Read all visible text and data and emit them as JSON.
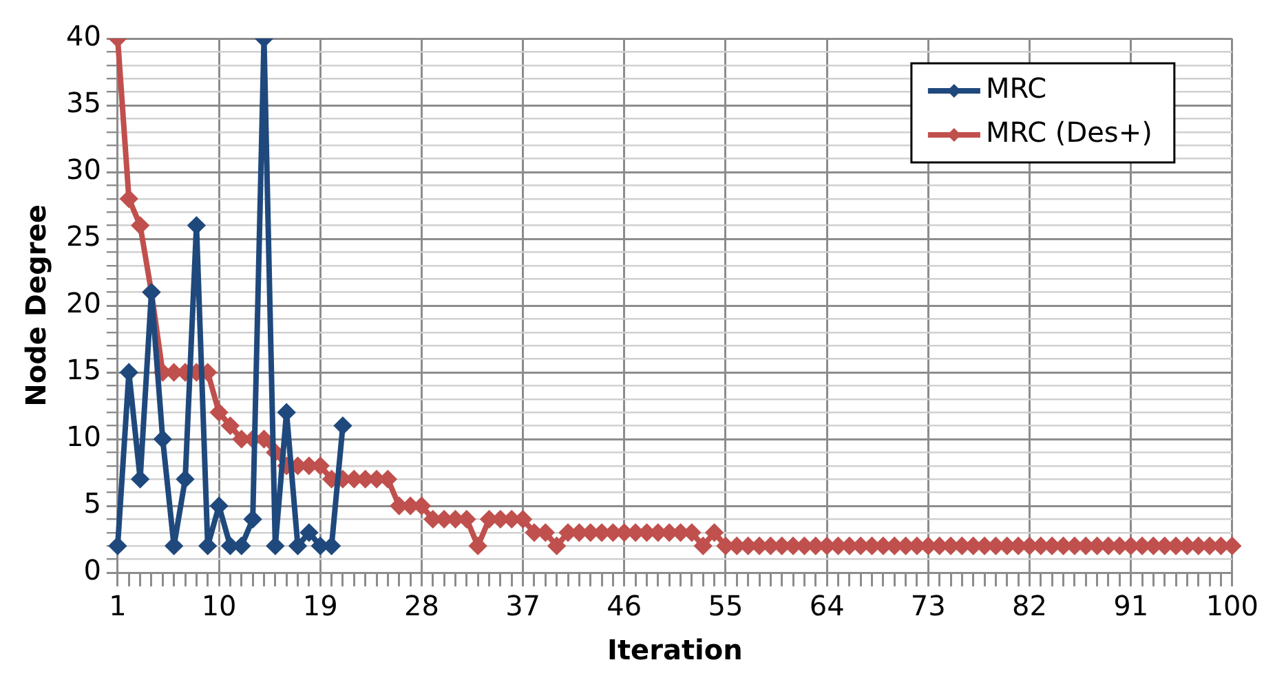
{
  "chart_data": {
    "type": "line",
    "xlabel": "Iteration",
    "ylabel": "Node Degree",
    "categories": [
      "1",
      null,
      null,
      null,
      null,
      null,
      null,
      null,
      null,
      "10",
      null,
      null,
      null,
      null,
      null,
      null,
      null,
      null,
      "19",
      null,
      null,
      null,
      null,
      null,
      null,
      null,
      null,
      "28",
      null,
      null,
      null,
      null,
      null,
      null,
      null,
      null,
      "37",
      null,
      null,
      null,
      null,
      null,
      null,
      null,
      null,
      "46",
      null,
      null,
      null,
      null,
      null,
      null,
      null,
      null,
      "55",
      null,
      null,
      null,
      null,
      null,
      null,
      null,
      null,
      "64",
      null,
      null,
      null,
      null,
      null,
      null,
      null,
      null,
      "73",
      null,
      null,
      null,
      null,
      null,
      null,
      null,
      null,
      "82",
      null,
      null,
      null,
      null,
      null,
      null,
      null,
      null,
      "91",
      null,
      null,
      null,
      null,
      null,
      null,
      null,
      null,
      "100"
    ],
    "series": [
      {
        "name": "MRC",
        "color": "#1f497d",
        "values": [
          2,
          15,
          7,
          21,
          10,
          2,
          7,
          26,
          2,
          5,
          2,
          2,
          4,
          40,
          2,
          12,
          2,
          3,
          2,
          2,
          11,
          null,
          null,
          null,
          null,
          null,
          null,
          null,
          null,
          null,
          null,
          null,
          null,
          null,
          null,
          null,
          null,
          null,
          null,
          null,
          null,
          null,
          null,
          null,
          null,
          null,
          null,
          null,
          null,
          null,
          null,
          null,
          null,
          null,
          null,
          null,
          null,
          null,
          null,
          null,
          null,
          null,
          null,
          null,
          null,
          null,
          null,
          null,
          null,
          null,
          null,
          null,
          null,
          null,
          null,
          null,
          null,
          null,
          null,
          null,
          null,
          null,
          null,
          null,
          null,
          null,
          null,
          null,
          null,
          null,
          null,
          null,
          null,
          null,
          null,
          null,
          null,
          null,
          null,
          null
        ]
      },
      {
        "name": "MRC (Des+)",
        "color": "#c0504d",
        "values": [
          40,
          28,
          26,
          21,
          15,
          15,
          15,
          15,
          15,
          12,
          11,
          10,
          10,
          10,
          9,
          8,
          8,
          8,
          8,
          7,
          7,
          7,
          7,
          7,
          7,
          5,
          5,
          5,
          4,
          4,
          4,
          4,
          2,
          4,
          4,
          4,
          4,
          3,
          3,
          2,
          3,
          3,
          3,
          3,
          3,
          3,
          3,
          3,
          3,
          3,
          3,
          3,
          2,
          3,
          2,
          2,
          2,
          2,
          2,
          2,
          2,
          2,
          2,
          2,
          2,
          2,
          2,
          2,
          2,
          2,
          2,
          2,
          2,
          2,
          2,
          2,
          2,
          2,
          2,
          2,
          2,
          2,
          2,
          2,
          2,
          2,
          2,
          2,
          2,
          2,
          2,
          2,
          2,
          2,
          2,
          2,
          2,
          2,
          2,
          2
        ]
      }
    ],
    "ylim": [
      0,
      40
    ],
    "yticks": [
      0,
      {
        "value": 1,
        "label": null
      },
      {
        "value": 2,
        "label": null
      },
      {
        "value": 3,
        "label": null
      },
      {
        "value": 4,
        "label": null
      },
      5,
      {
        "value": 6,
        "label": null
      },
      {
        "value": 7,
        "label": null
      },
      {
        "value": 8,
        "label": null
      },
      {
        "value": 9,
        "label": null
      },
      10,
      {
        "value": 11,
        "label": null
      },
      {
        "value": 12,
        "label": null
      },
      {
        "value": 13,
        "label": null
      },
      {
        "value": 14,
        "label": null
      },
      15,
      {
        "value": 16,
        "label": null
      },
      {
        "value": 17,
        "label": null
      },
      {
        "value": 18,
        "label": null
      },
      {
        "value": 19,
        "label": null
      },
      20,
      {
        "value": 21,
        "label": null
      },
      {
        "value": 22,
        "label": null
      },
      {
        "value": 23,
        "label": null
      },
      {
        "value": 24,
        "label": null
      },
      25,
      {
        "value": 26,
        "label": null
      },
      {
        "value": 27,
        "label": null
      },
      {
        "value": 28,
        "label": null
      },
      {
        "value": 29,
        "label": null
      },
      30,
      {
        "value": 31,
        "label": null
      },
      {
        "value": 32,
        "label": null
      },
      {
        "value": 33,
        "label": null
      },
      {
        "value": 34,
        "label": null
      },
      35,
      {
        "value": 36,
        "label": null
      },
      {
        "value": 37,
        "label": null
      },
      {
        "value": 38,
        "label": null
      },
      {
        "value": 39,
        "label": null
      },
      40
    ],
    "grid": true,
    "legend": "top right",
    "marker": "diamond",
    "line_style": "solid"
  }
}
